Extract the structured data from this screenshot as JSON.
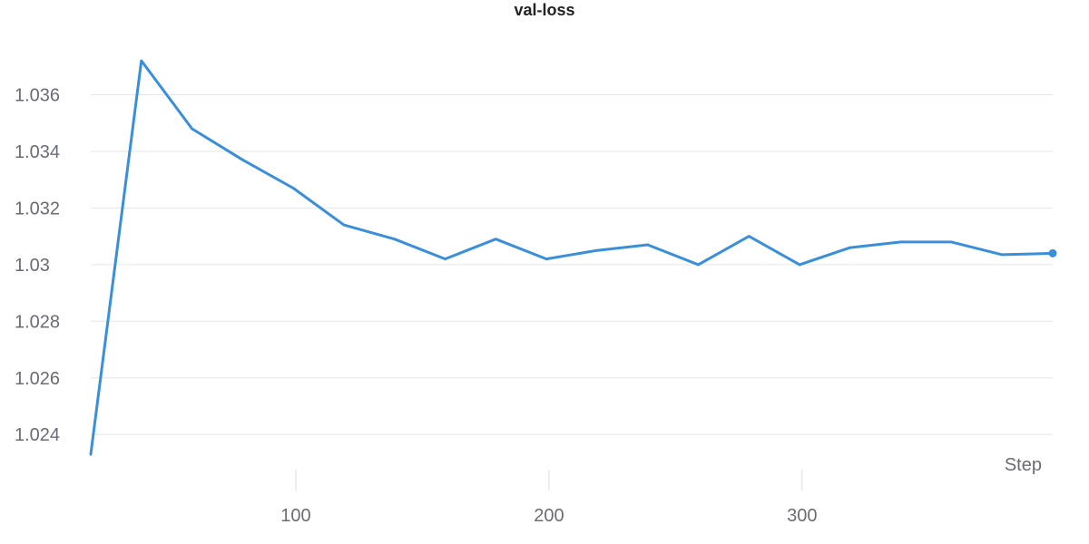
{
  "chart_data": {
    "type": "line",
    "title": "val-loss",
    "xlabel": "Step",
    "ylabel": "",
    "xlim": [
      19,
      399
    ],
    "ylim": [
      1.0228,
      1.0375
    ],
    "x_ticks": [
      100,
      200,
      300
    ],
    "x_tick_labels": [
      "100",
      "200",
      "300"
    ],
    "y_ticks": [
      1.024,
      1.026,
      1.028,
      1.03,
      1.032,
      1.034,
      1.036
    ],
    "y_tick_labels": [
      "1.024",
      "1.026",
      "1.028",
      "1.03",
      "1.032",
      "1.034",
      "1.036"
    ],
    "grid": true,
    "legend": "none",
    "series": [
      {
        "color": "#3a8fd9",
        "x": [
          19,
          39,
          59,
          79,
          99,
          119,
          139,
          159,
          179,
          199,
          219,
          239,
          259,
          279,
          299,
          319,
          339,
          359,
          379,
          399
        ],
        "y": [
          1.0233,
          1.0372,
          1.0348,
          1.0337,
          1.0327,
          1.0314,
          1.0309,
          1.0302,
          1.0309,
          1.0302,
          1.0305,
          1.0307,
          1.03,
          1.031,
          1.03,
          1.0306,
          1.0308,
          1.0308,
          1.03035,
          1.0304
        ]
      }
    ]
  }
}
